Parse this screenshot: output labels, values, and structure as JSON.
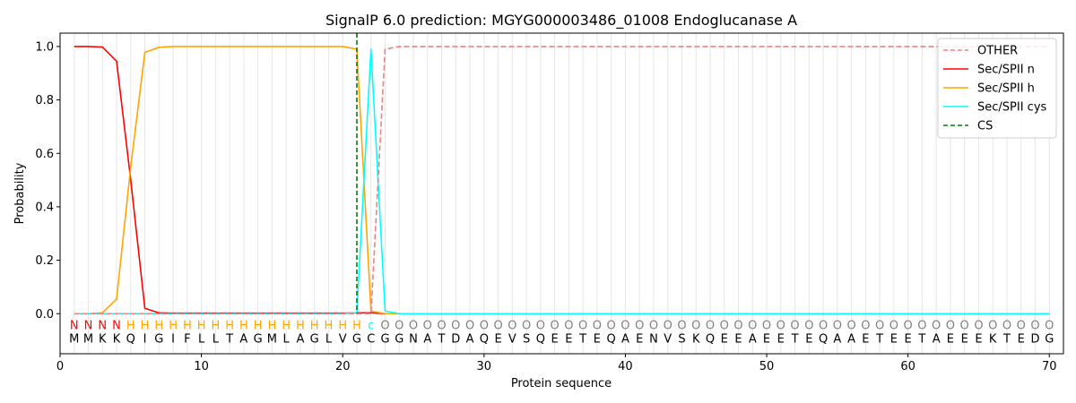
{
  "chart_data": {
    "type": "line",
    "title": "SignalP 6.0 prediction: MGYG000003486_01008 Endoglucanase A",
    "xlabel": "Protein sequence",
    "ylabel": "Probability",
    "xlim": [
      0,
      71
    ],
    "ylim": [
      -0.15,
      1.05
    ],
    "xticks": [
      0,
      10,
      20,
      30,
      40,
      50,
      60,
      70
    ],
    "yticks": [
      0.0,
      0.2,
      0.4,
      0.6,
      0.8,
      1.0
    ],
    "grid": "vertical lines at each residue",
    "legend_position": "top-right",
    "sequence": [
      "M",
      "M",
      "K",
      "K",
      "Q",
      "I",
      "G",
      "I",
      "F",
      "L",
      "L",
      "T",
      "A",
      "G",
      "M",
      "L",
      "A",
      "G",
      "L",
      "V",
      "G",
      "C",
      "G",
      "G",
      "N",
      "A",
      "T",
      "D",
      "A",
      "Q",
      "E",
      "V",
      "S",
      "Q",
      "E",
      "E",
      "T",
      "E",
      "Q",
      "A",
      "E",
      "N",
      "V",
      "S",
      "K",
      "Q",
      "E",
      "E",
      "A",
      "E",
      "E",
      "T",
      "E",
      "Q",
      "A",
      "A",
      "E",
      "T",
      "E",
      "E",
      "T",
      "A",
      "E",
      "E",
      "E",
      "K",
      "T",
      "E",
      "D",
      "G"
    ],
    "predicted_labels": [
      "N",
      "N",
      "N",
      "N",
      "H",
      "H",
      "H",
      "H",
      "H",
      "H",
      "H",
      "H",
      "H",
      "H",
      "H",
      "H",
      "H",
      "H",
      "H",
      "H",
      "H",
      "C",
      "O",
      "O",
      "O",
      "O",
      "O",
      "O",
      "O",
      "O",
      "O",
      "O",
      "O",
      "O",
      "O",
      "O",
      "O",
      "O",
      "O",
      "O",
      "O",
      "O",
      "O",
      "O",
      "O",
      "O",
      "O",
      "O",
      "O",
      "O",
      "O",
      "O",
      "O",
      "O",
      "O",
      "O",
      "O",
      "O",
      "O",
      "O",
      "O",
      "O",
      "O",
      "O",
      "O",
      "O",
      "O",
      "O",
      "O",
      "O"
    ],
    "label_colors": {
      "N": "#ff0000",
      "H": "#ffa500",
      "C": "#00ffff",
      "O": "#808080"
    },
    "cleavage_site": 21,
    "series": [
      {
        "name": "OTHER",
        "color": "#f08080",
        "dash": "dashed",
        "x": [
          1,
          2,
          3,
          4,
          5,
          6,
          7,
          8,
          9,
          10,
          11,
          12,
          13,
          14,
          15,
          16,
          17,
          18,
          19,
          20,
          21,
          22,
          23,
          24,
          25,
          26,
          27,
          28,
          29,
          30,
          31,
          32,
          33,
          34,
          35,
          36,
          37,
          38,
          39,
          40,
          41,
          42,
          43,
          44,
          45,
          46,
          47,
          48,
          49,
          50,
          51,
          52,
          53,
          54,
          55,
          56,
          57,
          58,
          59,
          60,
          61,
          62,
          63,
          64,
          65,
          66,
          67,
          68,
          69,
          70
        ],
        "values": [
          0,
          0,
          0,
          0,
          0,
          0,
          0,
          0,
          0,
          0,
          0,
          0,
          0,
          0,
          0,
          0,
          0,
          0,
          0,
          0,
          0,
          0.0,
          0.99,
          1.0,
          1.0,
          1.0,
          1.0,
          1.0,
          1.0,
          1.0,
          1.0,
          1.0,
          1.0,
          1.0,
          1.0,
          1.0,
          1.0,
          1.0,
          1.0,
          1.0,
          1.0,
          1.0,
          1.0,
          1.0,
          1.0,
          1.0,
          1.0,
          1.0,
          1.0,
          1.0,
          1.0,
          1.0,
          1.0,
          1.0,
          1.0,
          1.0,
          1.0,
          1.0,
          1.0,
          1.0,
          1.0,
          1.0,
          1.0,
          1.0,
          1.0,
          1.0,
          1.0,
          1.0,
          1.0,
          1.0
        ]
      },
      {
        "name": "Sec/SPII n",
        "color": "#ff0000",
        "dash": "solid",
        "x": [
          1,
          2,
          3,
          4,
          5,
          6,
          7,
          8,
          9,
          10,
          11,
          12,
          13,
          14,
          15,
          16,
          17,
          18,
          19,
          20,
          21,
          22,
          23,
          24,
          25,
          26,
          27,
          28,
          29,
          30,
          31,
          32,
          33,
          34,
          35,
          36,
          37,
          38,
          39,
          40,
          41,
          42,
          43,
          44,
          45,
          46,
          47,
          48,
          49,
          50,
          51,
          52,
          53,
          54,
          55,
          56,
          57,
          58,
          59,
          60,
          61,
          62,
          63,
          64,
          65,
          66,
          67,
          68,
          69,
          70
        ],
        "values": [
          1.0,
          1.0,
          0.998,
          0.945,
          0.5,
          0.02,
          0.003,
          0.002,
          0.002,
          0.002,
          0.002,
          0.002,
          0.002,
          0.002,
          0.002,
          0.002,
          0.002,
          0.002,
          0.002,
          0.002,
          0.003,
          0.003,
          0,
          0,
          0,
          0,
          0,
          0,
          0,
          0,
          0,
          0,
          0,
          0,
          0,
          0,
          0,
          0,
          0,
          0,
          0,
          0,
          0,
          0,
          0,
          0,
          0,
          0,
          0,
          0,
          0,
          0,
          0,
          0,
          0,
          0,
          0,
          0,
          0,
          0,
          0,
          0,
          0,
          0,
          0,
          0,
          0,
          0,
          0,
          0
        ]
      },
      {
        "name": "Sec/SPII h",
        "color": "#ffa500",
        "dash": "solid",
        "x": [
          1,
          2,
          3,
          4,
          5,
          6,
          7,
          8,
          9,
          10,
          11,
          12,
          13,
          14,
          15,
          16,
          17,
          18,
          19,
          20,
          21,
          22,
          23,
          24,
          25,
          26,
          27,
          28,
          29,
          30,
          31,
          32,
          33,
          34,
          35,
          36,
          37,
          38,
          39,
          40,
          41,
          42,
          43,
          44,
          45,
          46,
          47,
          48,
          49,
          50,
          51,
          52,
          53,
          54,
          55,
          56,
          57,
          58,
          59,
          60,
          61,
          62,
          63,
          64,
          65,
          66,
          67,
          68,
          69,
          70
        ],
        "values": [
          0,
          0,
          0.003,
          0.055,
          0.55,
          0.978,
          0.997,
          1.0,
          1.0,
          1.0,
          1.0,
          1.0,
          1.0,
          1.0,
          1.0,
          1.0,
          1.0,
          1.0,
          1.0,
          1.0,
          0.99,
          0.01,
          0,
          0,
          0,
          0,
          0,
          0,
          0,
          0,
          0,
          0,
          0,
          0,
          0,
          0,
          0,
          0,
          0,
          0,
          0,
          0,
          0,
          0,
          0,
          0,
          0,
          0,
          0,
          0,
          0,
          0,
          0,
          0,
          0,
          0,
          0,
          0,
          0,
          0,
          0,
          0,
          0,
          0,
          0,
          0,
          0,
          0,
          0,
          0
        ]
      },
      {
        "name": "Sec/SPII cys",
        "color": "#00ffff",
        "dash": "solid",
        "x": [
          1,
          2,
          3,
          4,
          5,
          6,
          7,
          8,
          9,
          10,
          11,
          12,
          13,
          14,
          15,
          16,
          17,
          18,
          19,
          20,
          21,
          22,
          23,
          24,
          25,
          26,
          27,
          28,
          29,
          30,
          31,
          32,
          33,
          34,
          35,
          36,
          37,
          38,
          39,
          40,
          41,
          42,
          43,
          44,
          45,
          46,
          47,
          48,
          49,
          50,
          51,
          52,
          53,
          54,
          55,
          56,
          57,
          58,
          59,
          60,
          61,
          62,
          63,
          64,
          65,
          66,
          67,
          68,
          69,
          70
        ],
        "values": [
          0,
          0,
          0,
          0,
          0,
          0,
          0,
          0,
          0,
          0,
          0,
          0,
          0,
          0,
          0,
          0,
          0,
          0,
          0,
          0,
          0.004,
          0.99,
          0.01,
          0,
          0,
          0,
          0,
          0,
          0,
          0,
          0,
          0,
          0,
          0,
          0,
          0,
          0,
          0,
          0,
          0,
          0,
          0,
          0,
          0,
          0,
          0,
          0,
          0,
          0,
          0,
          0,
          0,
          0,
          0,
          0,
          0,
          0,
          0,
          0,
          0,
          0,
          0,
          0,
          0,
          0,
          0,
          0,
          0,
          0,
          0
        ]
      },
      {
        "name": "CS",
        "color": "#008000",
        "dash": "dashed",
        "x": [],
        "values": []
      }
    ]
  }
}
